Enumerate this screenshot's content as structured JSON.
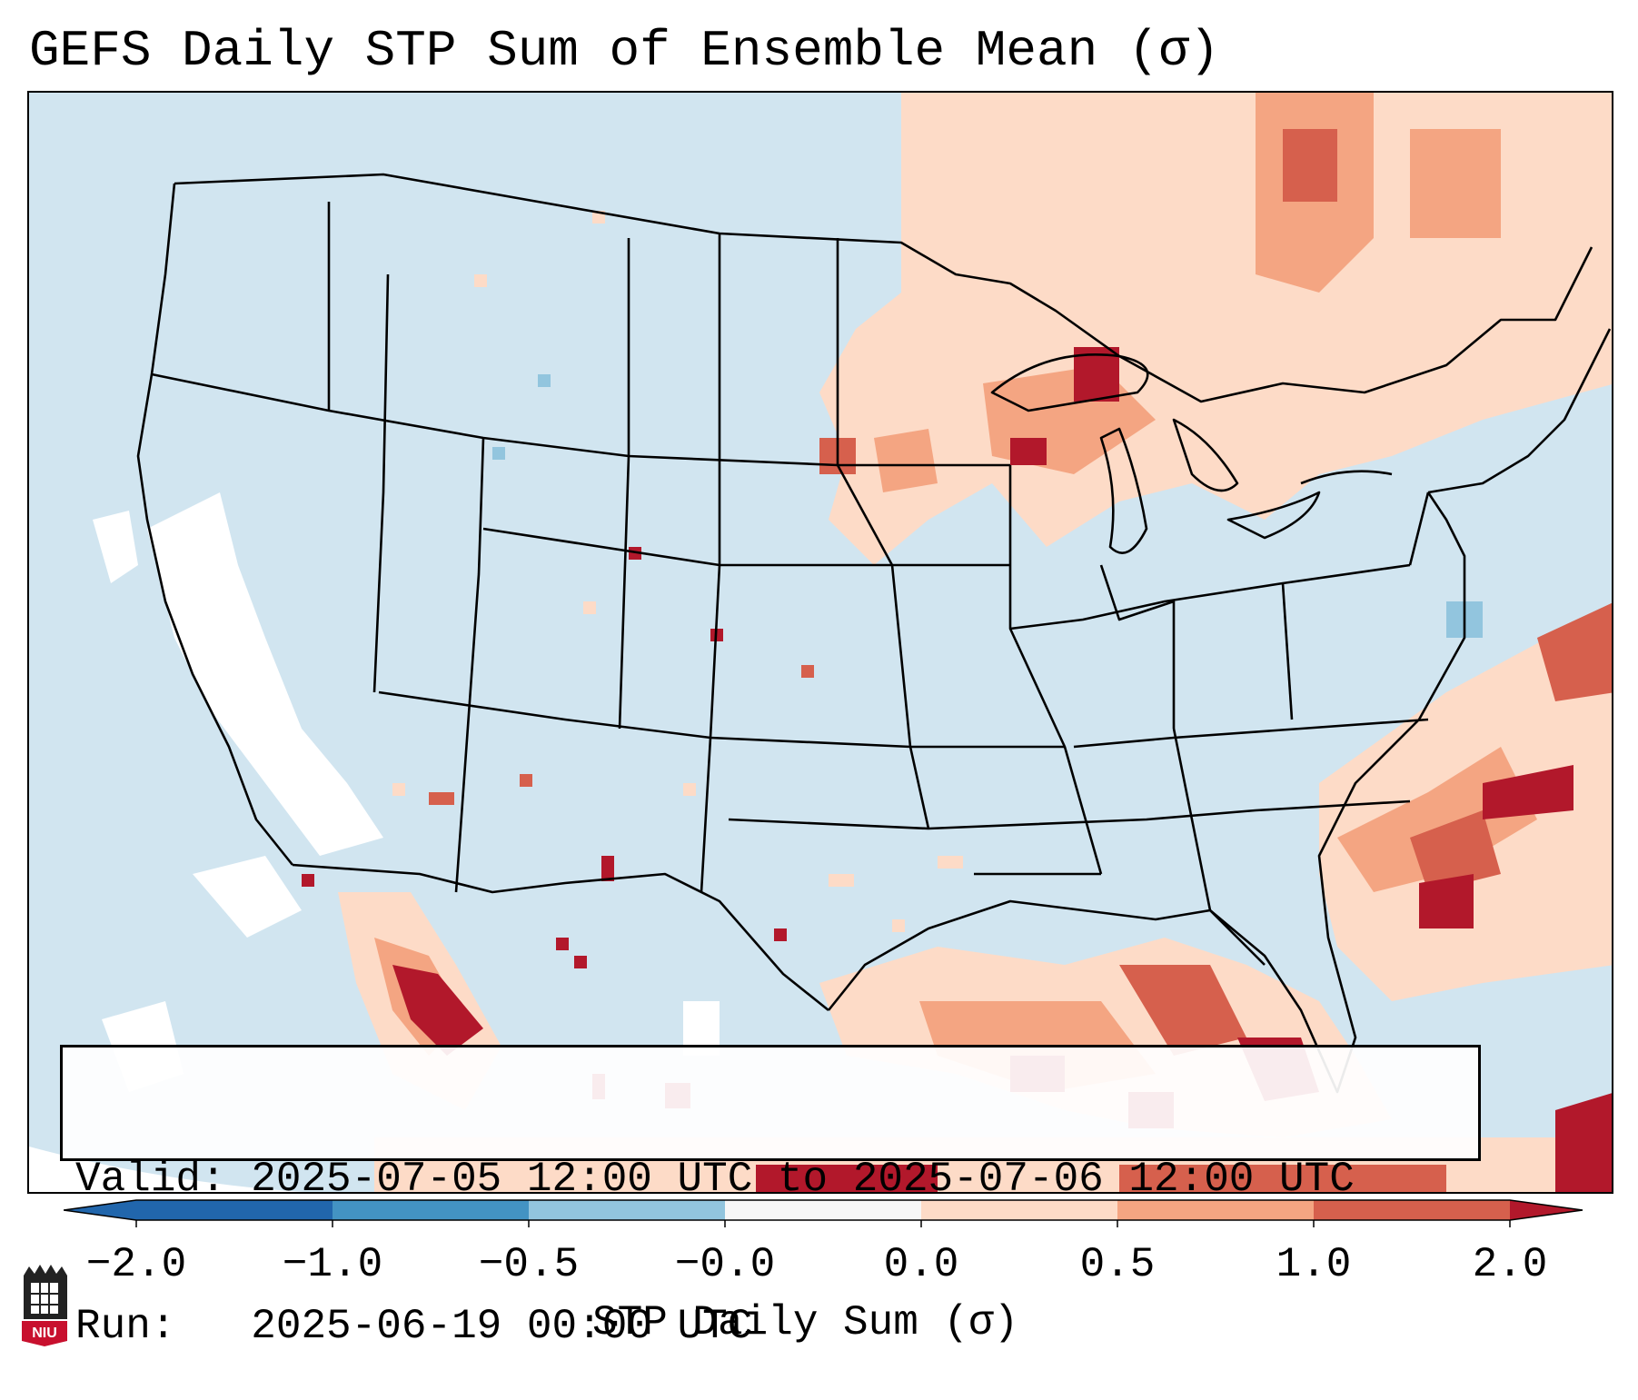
{
  "title": "GEFS Daily STP Sum of Ensemble Mean (σ)",
  "map": {
    "region": "CONUS and surrounding areas",
    "ocean_color": "#d1e5f0",
    "low_anomaly_color": "#ffffff",
    "high_anomaly_colors": [
      "#fddbc7",
      "#f4a582",
      "#d6604d",
      "#b2182b"
    ],
    "border_color": "#000000"
  },
  "info": {
    "valid_line": "Valid: 2025-07-05 12:00 UTC to 2025-07-06 12:00 UTC",
    "run_line": "Run:   2025-06-19 00:00 UTC"
  },
  "colorbar": {
    "label": "STP Daily Sum (σ)",
    "ticks": [
      "−2.0",
      "−1.0",
      "−0.5",
      "−0.0",
      "0.0",
      "0.5",
      "1.0",
      "2.0"
    ],
    "colors": [
      "#2166ac",
      "#4393c3",
      "#92c5de",
      "#d1e5f0",
      "#f7f7f7",
      "#fddbc7",
      "#f4a582",
      "#d6604d",
      "#b2182b"
    ]
  },
  "logo": {
    "text": "NIU"
  }
}
